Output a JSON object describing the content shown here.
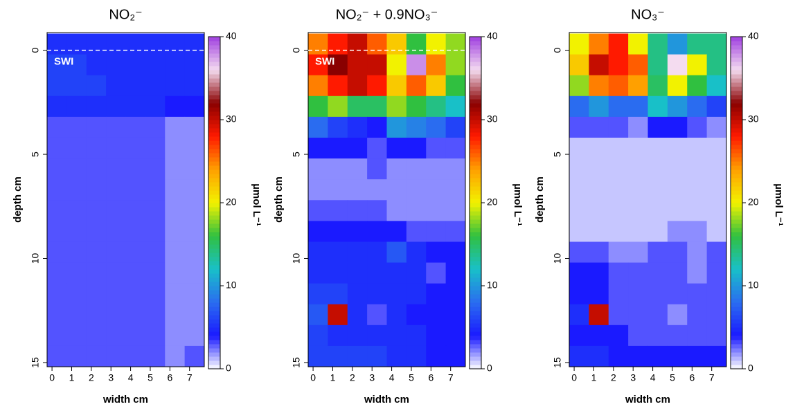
{
  "chart_data": [
    {
      "type": "heatmap",
      "title": "NO₂⁻",
      "xlabel": "width cm",
      "ylabel": "depth cm",
      "colorbar_label": "µmol L⁻¹",
      "annotation": "SWI",
      "annotation_depth": 0,
      "xlim": [
        -0.25,
        7.75
      ],
      "ylim": [
        15.2,
        -0.85
      ],
      "xticks": [
        0,
        1,
        2,
        3,
        4,
        5,
        6,
        7
      ],
      "yticks": [
        0,
        5,
        10,
        15
      ],
      "zlim": [
        0,
        40
      ],
      "zticks": [
        0,
        10,
        20,
        30,
        40
      ],
      "colormap": [
        "#ffffff",
        "#1a1aff",
        "#2a6cf0",
        "#18c0c8",
        "#30c040",
        "#f2f200",
        "#ffa000",
        "#ff1a00",
        "#8a0000",
        "#f4dcf0",
        "#a040e0"
      ],
      "xbins": [
        -0.25,
        0.75,
        1.75,
        2.75,
        3.75,
        4.75,
        5.75,
        6.75,
        7.75
      ],
      "ybins": [
        -0.8,
        0.2,
        1.2,
        2.2,
        3.2,
        4.2,
        5.2,
        6.2,
        7.2,
        8.2,
        9.2,
        10.2,
        11.2,
        12.2,
        13.2,
        14.2,
        15.2
      ],
      "z": [
        [
          5,
          5,
          5,
          5,
          5,
          5,
          5,
          5
        ],
        [
          6,
          6,
          5,
          5,
          5,
          5,
          5,
          5
        ],
        [
          6,
          6,
          6,
          5,
          5,
          5,
          5,
          5
        ],
        [
          5,
          5,
          5,
          5,
          5,
          5,
          4,
          4
        ],
        [
          3,
          3,
          3,
          3,
          3,
          3,
          2,
          2
        ],
        [
          3,
          3,
          3,
          3,
          3,
          3,
          2,
          2
        ],
        [
          3,
          3,
          3,
          3,
          3,
          3,
          2,
          2
        ],
        [
          3,
          3,
          3,
          3,
          3,
          3,
          2,
          2
        ],
        [
          3,
          3,
          3,
          3,
          3,
          3,
          2,
          2
        ],
        [
          3,
          3,
          3,
          3,
          3,
          3,
          2,
          2
        ],
        [
          3,
          3,
          3,
          3,
          3,
          3,
          2,
          2
        ],
        [
          3,
          3,
          3,
          3,
          3,
          3,
          2,
          2
        ],
        [
          3,
          3,
          3,
          3,
          3,
          3,
          2,
          2
        ],
        [
          3,
          3,
          3,
          3,
          3,
          3,
          2,
          2
        ],
        [
          3,
          3,
          3,
          3,
          3,
          3,
          2,
          2
        ],
        [
          3,
          3,
          3,
          3,
          3,
          3,
          2,
          3
        ]
      ]
    },
    {
      "type": "heatmap",
      "title": "NO₂⁻ + 0.9NO₃⁻",
      "xlabel": "width cm",
      "ylabel": "depth cm",
      "colorbar_label": "µmol L⁻¹",
      "annotation": "SWI",
      "annotation_depth": 0,
      "xlim": [
        -0.25,
        7.75
      ],
      "ylim": [
        15.2,
        -0.85
      ],
      "xticks": [
        0,
        1,
        2,
        3,
        4,
        5,
        6,
        7
      ],
      "yticks": [
        0,
        5,
        10,
        15
      ],
      "zlim": [
        0,
        40
      ],
      "zticks": [
        0,
        10,
        20,
        30,
        40
      ],
      "colormap": [
        "#ffffff",
        "#1a1aff",
        "#2a6cf0",
        "#18c0c8",
        "#30c040",
        "#f2f200",
        "#ffa000",
        "#ff1a00",
        "#8a0000",
        "#f4dcf0",
        "#a040e0"
      ],
      "xbins": [
        -0.25,
        0.75,
        1.75,
        2.75,
        3.75,
        4.75,
        5.75,
        6.75,
        7.75
      ],
      "ybins": [
        -0.8,
        0.2,
        1.2,
        2.2,
        3.2,
        4.2,
        5.2,
        6.2,
        7.2,
        8.2,
        9.2,
        10.2,
        11.2,
        12.2,
        13.2,
        14.2,
        15.2
      ],
      "z": [
        [
          25,
          28,
          30,
          26,
          22,
          16,
          20,
          18
        ],
        [
          28,
          32,
          30,
          30,
          20,
          38,
          25,
          18
        ],
        [
          25,
          28,
          30,
          28,
          22,
          26,
          22,
          16
        ],
        [
          16,
          18,
          15,
          15,
          18,
          16,
          14,
          12
        ],
        [
          8,
          6,
          5,
          4,
          10,
          9,
          8,
          6
        ],
        [
          4,
          4,
          4,
          3,
          4,
          4,
          3,
          3
        ],
        [
          2,
          2,
          2,
          3,
          2,
          2,
          2,
          2
        ],
        [
          2,
          2,
          2,
          2,
          2,
          2,
          2,
          2
        ],
        [
          3,
          3,
          3,
          3,
          2,
          2,
          2,
          2
        ],
        [
          4,
          4,
          4,
          4,
          4,
          3,
          3,
          3
        ],
        [
          5,
          5,
          5,
          5,
          7,
          5,
          4,
          4
        ],
        [
          5,
          5,
          5,
          5,
          5,
          5,
          3,
          4
        ],
        [
          6,
          6,
          5,
          5,
          5,
          5,
          4,
          4
        ],
        [
          7,
          30,
          5,
          3,
          5,
          4,
          4,
          4
        ],
        [
          6,
          5,
          5,
          5,
          5,
          5,
          4,
          4
        ],
        [
          6,
          6,
          6,
          6,
          5,
          5,
          4,
          4
        ]
      ]
    },
    {
      "type": "heatmap",
      "title": "NO₃⁻",
      "xlabel": "width cm",
      "ylabel": "depth cm",
      "colorbar_label": "µmol L⁻¹",
      "xlim": [
        -0.25,
        7.75
      ],
      "ylim": [
        15.2,
        -0.85
      ],
      "xticks": [
        0,
        1,
        2,
        3,
        4,
        5,
        6,
        7
      ],
      "yticks": [
        0,
        5,
        10,
        15
      ],
      "zlim": [
        0,
        40
      ],
      "zticks": [
        0,
        10,
        20,
        30,
        40
      ],
      "colormap": [
        "#ffffff",
        "#1a1aff",
        "#2a6cf0",
        "#18c0c8",
        "#30c040",
        "#f2f200",
        "#ffa000",
        "#ff1a00",
        "#8a0000",
        "#f4dcf0",
        "#a040e0"
      ],
      "xbins": [
        -0.25,
        0.75,
        1.75,
        2.75,
        3.75,
        4.75,
        5.75,
        6.75,
        7.75
      ],
      "ybins": [
        -0.8,
        0.2,
        1.2,
        2.2,
        3.2,
        4.2,
        5.2,
        6.2,
        7.2,
        8.2,
        9.2,
        10.2,
        11.2,
        12.2,
        13.2,
        14.2,
        15.2
      ],
      "z": [
        [
          20,
          25,
          28,
          20,
          14,
          10,
          14,
          14
        ],
        [
          22,
          30,
          28,
          26,
          14,
          36,
          20,
          14
        ],
        [
          18,
          25,
          26,
          24,
          15,
          20,
          16,
          12
        ],
        [
          8,
          10,
          8,
          8,
          12,
          10,
          8,
          6
        ],
        [
          3,
          3,
          3,
          2,
          4,
          4,
          3,
          2
        ],
        [
          1,
          1,
          1,
          1,
          1,
          1,
          1,
          1
        ],
        [
          1,
          1,
          1,
          1,
          1,
          1,
          1,
          1
        ],
        [
          1,
          1,
          1,
          1,
          1,
          1,
          1,
          1
        ],
        [
          1,
          1,
          1,
          1,
          1,
          1,
          1,
          1
        ],
        [
          1,
          1,
          1,
          1,
          1,
          2,
          2,
          1
        ],
        [
          3,
          3,
          2,
          2,
          3,
          3,
          2,
          3
        ],
        [
          4,
          4,
          3,
          3,
          3,
          3,
          2,
          3
        ],
        [
          4,
          4,
          3,
          3,
          3,
          3,
          3,
          3
        ],
        [
          5,
          30,
          3,
          3,
          3,
          2,
          3,
          3
        ],
        [
          4,
          4,
          4,
          3,
          3,
          3,
          3,
          3
        ],
        [
          5,
          5,
          4,
          4,
          4,
          4,
          4,
          4
        ]
      ]
    }
  ]
}
